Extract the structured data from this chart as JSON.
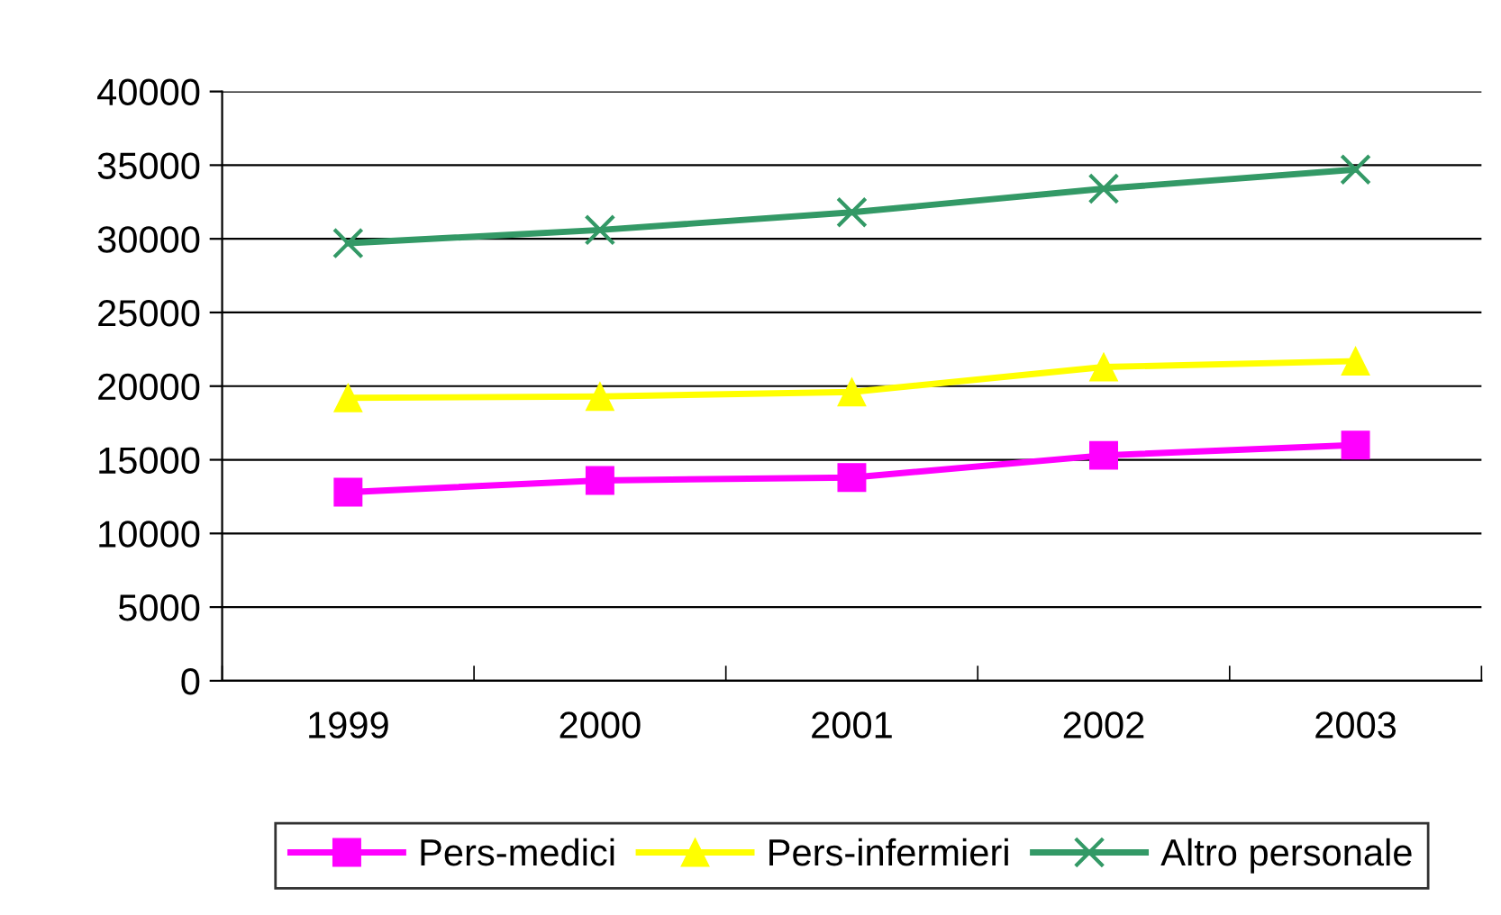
{
  "chart_data": {
    "type": "line",
    "categories": [
      "1999",
      "2000",
      "2001",
      "2002",
      "2003"
    ],
    "series": [
      {
        "name": "Pers-medici",
        "color": "#ff00ff",
        "marker": "square",
        "values": [
          12800,
          13600,
          13800,
          15300,
          16000
        ]
      },
      {
        "name": "Pers-infermieri",
        "color": "#ffff00",
        "marker": "triangle",
        "values": [
          19200,
          19300,
          19600,
          21300,
          21700
        ]
      },
      {
        "name": "Altro personale",
        "color": "#339966",
        "marker": "cross",
        "values": [
          29700,
          30600,
          31800,
          33400,
          34700
        ]
      }
    ],
    "ylim": [
      0,
      40000
    ],
    "yticks": [
      0,
      5000,
      10000,
      15000,
      20000,
      25000,
      30000,
      35000,
      40000
    ],
    "grid": "y",
    "legend": "bottom",
    "line_style": "solid"
  }
}
